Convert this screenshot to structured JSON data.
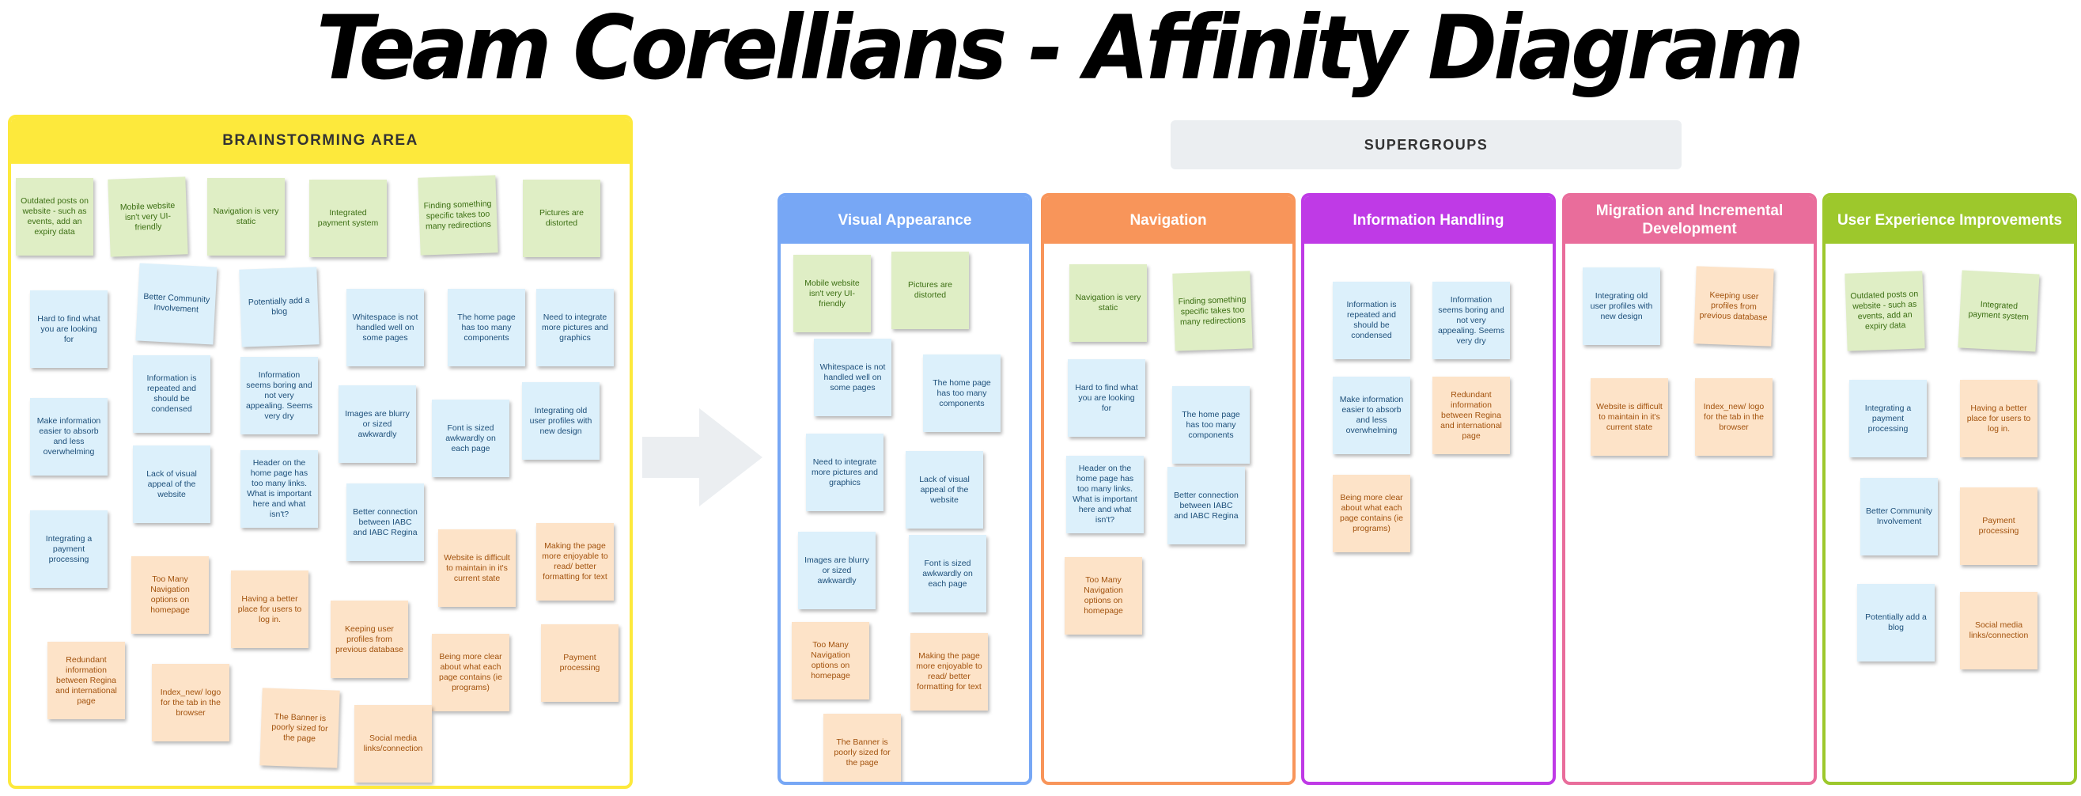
{
  "title": "Team Corellians - Affinity Diagram",
  "brainstorm": {
    "label": "BRAINSTORMING AREA",
    "color": "#fde93c",
    "notes": [
      {
        "text": "Outdated posts on website - such as events, add an expiry data",
        "color": "green"
      },
      {
        "text": "Mobile website isn't very UI-friendly",
        "color": "green"
      },
      {
        "text": "Navigation is very static",
        "color": "green"
      },
      {
        "text": "Integrated payment system",
        "color": "green"
      },
      {
        "text": "Finding something specific takes too many redirections",
        "color": "green"
      },
      {
        "text": "Pictures are distorted",
        "color": "green"
      },
      {
        "text": "Hard to find what you are looking for",
        "color": "blue"
      },
      {
        "text": "Better Community Involvement",
        "color": "blue"
      },
      {
        "text": "Potentially add a blog",
        "color": "blue"
      },
      {
        "text": "Whitespace is not handled well on some pages",
        "color": "blue"
      },
      {
        "text": "The home page has too many components",
        "color": "blue"
      },
      {
        "text": "Need to integrate more pictures and graphics",
        "color": "blue"
      },
      {
        "text": "Make information easier to absorb and less overwhelming",
        "color": "blue"
      },
      {
        "text": "Information is repeated and should be condensed",
        "color": "blue"
      },
      {
        "text": "Information seems boring and not very appealing. Seems very dry",
        "color": "blue"
      },
      {
        "text": "Images are blurry or sized awkwardly",
        "color": "blue"
      },
      {
        "text": "Font is sized awkwardly on each page",
        "color": "blue"
      },
      {
        "text": "Integrating old user profiles with new design",
        "color": "blue"
      },
      {
        "text": "Lack of visual appeal of the website",
        "color": "blue"
      },
      {
        "text": "Header on the home page has too many links. What is important here and what isn't?",
        "color": "blue"
      },
      {
        "text": "Better connection between IABC and IABC Regina",
        "color": "blue"
      },
      {
        "text": "Integrating a payment processing",
        "color": "blue"
      },
      {
        "text": "Website is difficult to maintain in it's current state",
        "color": "orange"
      },
      {
        "text": "Making the page more enjoyable to read/ better formatting for text",
        "color": "orange"
      },
      {
        "text": "Too Many Navigation options on homepage",
        "color": "orange"
      },
      {
        "text": "Having a better place for users to log in.",
        "color": "orange"
      },
      {
        "text": "Keeping user profiles from previous database",
        "color": "orange"
      },
      {
        "text": "Being more clear about what each page contains (ie programs)",
        "color": "orange"
      },
      {
        "text": "Payment processing",
        "color": "orange"
      },
      {
        "text": "Redundant information between Regina and international page",
        "color": "orange"
      },
      {
        "text": "Index_new/ logo for the tab in the browser",
        "color": "orange"
      },
      {
        "text": "The Banner is poorly sized for the page",
        "color": "orange"
      },
      {
        "text": "Social media links/connection",
        "color": "orange"
      }
    ]
  },
  "supergroups_label": "SUPERGROUPS",
  "groups": [
    {
      "label": "Visual Appearance",
      "color": "#77a7f5",
      "notes": [
        {
          "text": "Mobile website isn't very UI-friendly",
          "color": "green"
        },
        {
          "text": "Pictures are distorted",
          "color": "green"
        },
        {
          "text": "Whitespace is not handled well on some pages",
          "color": "blue"
        },
        {
          "text": "The home page has too many components",
          "color": "blue"
        },
        {
          "text": "Need to integrate more pictures and graphics",
          "color": "blue"
        },
        {
          "text": "Lack of visual appeal of the website",
          "color": "blue"
        },
        {
          "text": "Images are blurry or sized awkwardly",
          "color": "blue"
        },
        {
          "text": "Font is sized awkwardly on each page",
          "color": "blue"
        },
        {
          "text": "Too Many Navigation options on homepage",
          "color": "orange"
        },
        {
          "text": "Making the page more enjoyable to read/ better formatting for text",
          "color": "orange"
        },
        {
          "text": "The Banner is poorly sized for the page",
          "color": "orange"
        }
      ]
    },
    {
      "label": "Navigation",
      "color": "#f8955a",
      "notes": [
        {
          "text": "Navigation is very static",
          "color": "green"
        },
        {
          "text": "Finding something specific takes too many redirections",
          "color": "green"
        },
        {
          "text": "Hard to find what you are looking for",
          "color": "blue"
        },
        {
          "text": "The home page has too many components",
          "color": "blue"
        },
        {
          "text": "Header on the home page has too many links. What is important here and what isn't?",
          "color": "blue"
        },
        {
          "text": "Better connection between IABC and IABC Regina",
          "color": "blue"
        },
        {
          "text": "Too Many Navigation options on homepage",
          "color": "orange"
        }
      ]
    },
    {
      "label": "Information Handling",
      "color": "#bf3ae6",
      "notes": [
        {
          "text": "Information is repeated and should be condensed",
          "color": "blue"
        },
        {
          "text": "Information seems boring and not very appealing. Seems very dry",
          "color": "blue"
        },
        {
          "text": "Make information easier to absorb and less overwhelming",
          "color": "blue"
        },
        {
          "text": "Redundant information between Regina and international page",
          "color": "orange"
        },
        {
          "text": "Being more clear about what each page contains (ie programs)",
          "color": "orange"
        }
      ]
    },
    {
      "label": "Migration and Incremental Development",
      "color": "#e96d9b",
      "notes": [
        {
          "text": "Integrating old user profiles with new design",
          "color": "blue"
        },
        {
          "text": "Keeping user profiles from previous database",
          "color": "orange"
        },
        {
          "text": "Website is difficult to maintain in it's current state",
          "color": "orange"
        },
        {
          "text": "Index_new/ logo for the tab in the browser",
          "color": "orange"
        }
      ]
    },
    {
      "label": "User Experience Improvements",
      "color": "#9dc82c",
      "notes": [
        {
          "text": "Outdated posts on website - such as events, add an expiry data",
          "color": "green"
        },
        {
          "text": "Integrated payment system",
          "color": "green"
        },
        {
          "text": "Integrating a payment processing",
          "color": "blue"
        },
        {
          "text": "Having a better place for users to log in.",
          "color": "orange"
        },
        {
          "text": "Better Community Involvement",
          "color": "blue"
        },
        {
          "text": "Payment processing",
          "color": "orange"
        },
        {
          "text": "Potentially add a blog",
          "color": "blue"
        },
        {
          "text": "Social media links/connection",
          "color": "orange"
        }
      ]
    }
  ]
}
